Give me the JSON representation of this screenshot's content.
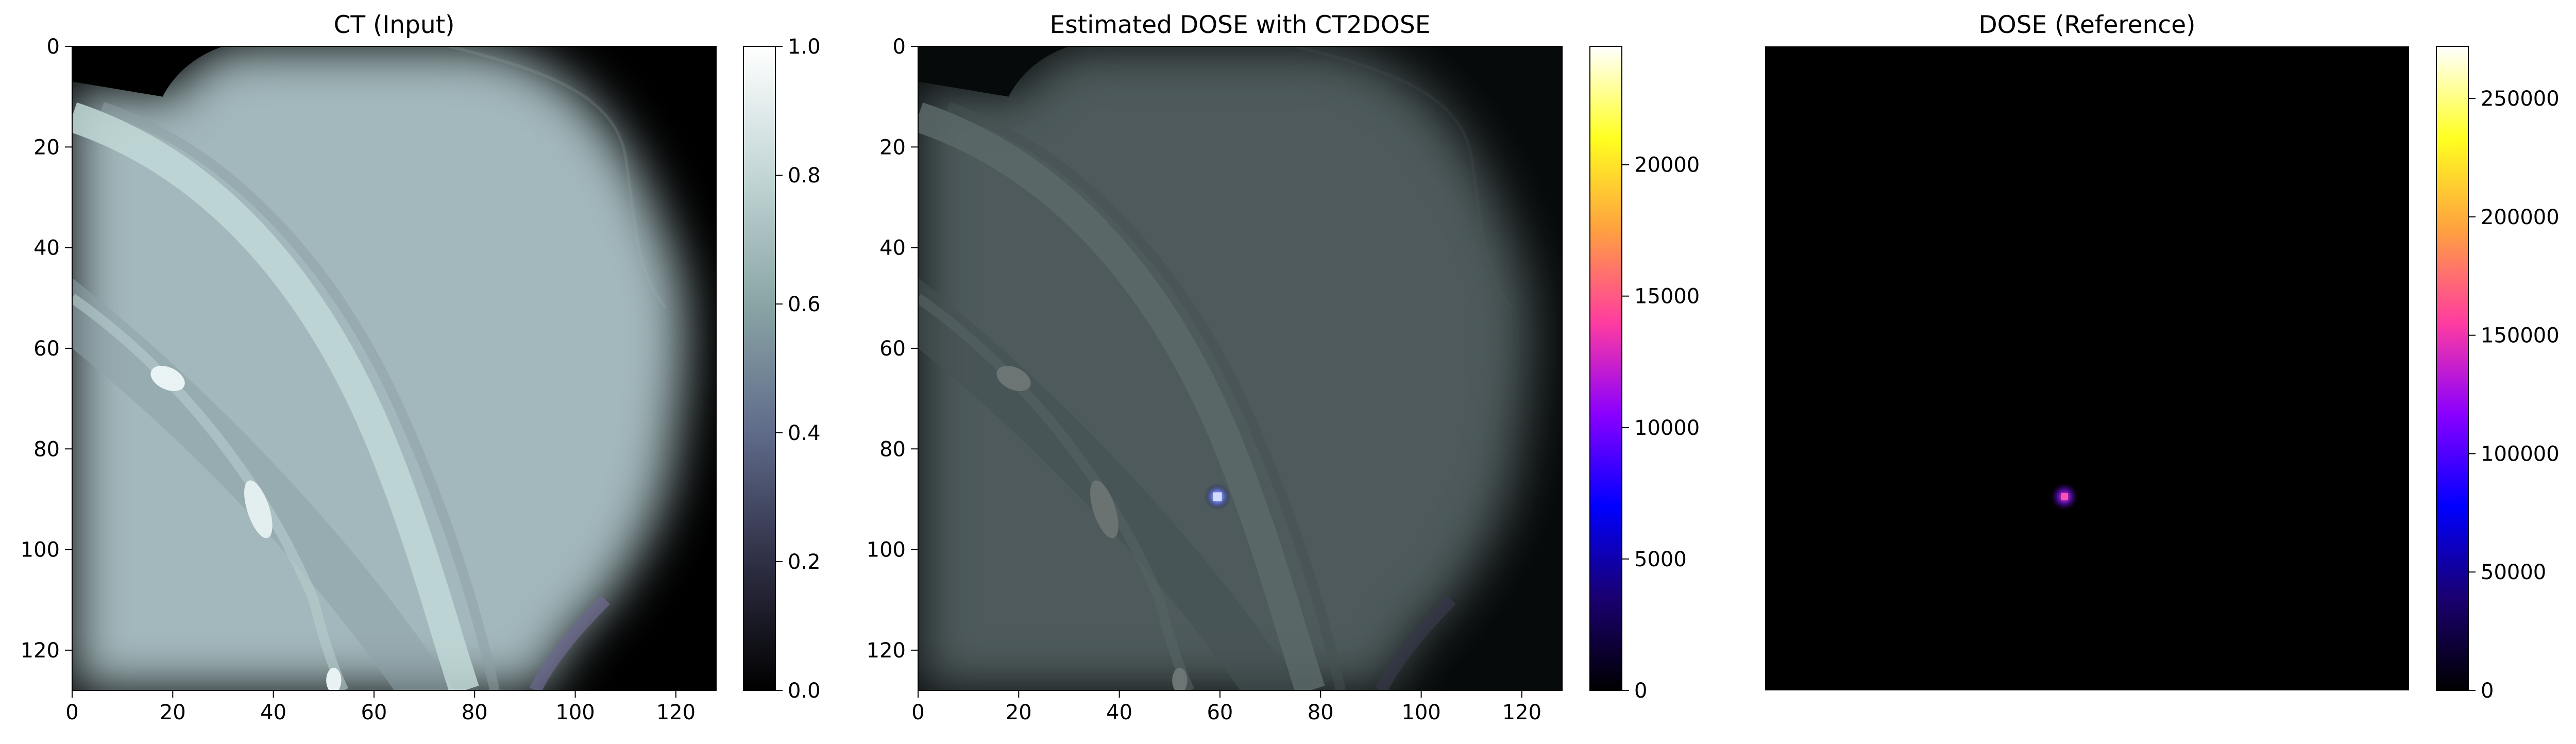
{
  "chart_data": [
    {
      "type": "heatmap",
      "title": "CT (Input)",
      "xlabel": "",
      "ylabel": "",
      "xlim": [
        0,
        128
      ],
      "ylim": [
        128,
        0
      ],
      "x_ticks": [
        0,
        20,
        40,
        60,
        80,
        100,
        120
      ],
      "y_ticks": [
        0,
        20,
        40,
        60,
        80,
        100,
        120
      ],
      "colormap": "bone",
      "colorbar": {
        "range": [
          0,
          1.0
        ],
        "ticks": [
          0.0,
          0.2,
          0.4,
          0.6,
          0.8,
          1.0
        ],
        "tick_labels": [
          "0.0",
          "0.2",
          "0.4",
          "0.6",
          "0.8",
          "1.0"
        ],
        "stops": [
          "#000000",
          "#2f2f45",
          "#5f6b8a",
          "#8aa5a5",
          "#c3d6d6",
          "#ffffff"
        ]
      },
      "show_axes": true
    },
    {
      "type": "heatmap",
      "title": "Estimated DOSE with CT2DOSE",
      "xlabel": "",
      "ylabel": "",
      "xlim": [
        0,
        128
      ],
      "ylim": [
        128,
        0
      ],
      "x_ticks": [
        0,
        20,
        40,
        60,
        80,
        100,
        120
      ],
      "y_ticks": [
        0,
        20,
        40,
        60,
        80,
        100,
        120
      ],
      "colormap": "gnuplot2",
      "colorbar": {
        "range": [
          0,
          24500
        ],
        "ticks": [
          0,
          5000,
          10000,
          15000,
          20000
        ],
        "tick_labels": [
          "0",
          "5000",
          "10000",
          "15000",
          "20000"
        ],
        "stops": [
          "#000000",
          "#1a0070",
          "#0000ff",
          "#8a00ff",
          "#ff3ca0",
          "#ffa040",
          "#ffff20",
          "#ffffff"
        ]
      },
      "hotspot": {
        "x": 59.5,
        "y": 89.5,
        "color": "#d2dcff"
      },
      "overlay_on_ct": true,
      "show_axes": true
    },
    {
      "type": "heatmap",
      "title": "DOSE (Reference)",
      "xlabel": "",
      "ylabel": "",
      "xlim": [
        0,
        128
      ],
      "ylim": [
        128,
        0
      ],
      "colormap": "gnuplot2",
      "colorbar": {
        "range": [
          0,
          272000
        ],
        "ticks": [
          0,
          50000,
          100000,
          150000,
          200000,
          250000
        ],
        "tick_labels": [
          "0",
          "50000",
          "100000",
          "150000",
          "200000",
          "250000"
        ],
        "stops": [
          "#000000",
          "#1a0070",
          "#0000ff",
          "#8a00ff",
          "#ff3ca0",
          "#ffa040",
          "#ffff20",
          "#ffffff"
        ]
      },
      "hotspot": {
        "x": 59.5,
        "y": 89.5,
        "color": "#ff50b4"
      },
      "show_axes": false
    }
  ]
}
